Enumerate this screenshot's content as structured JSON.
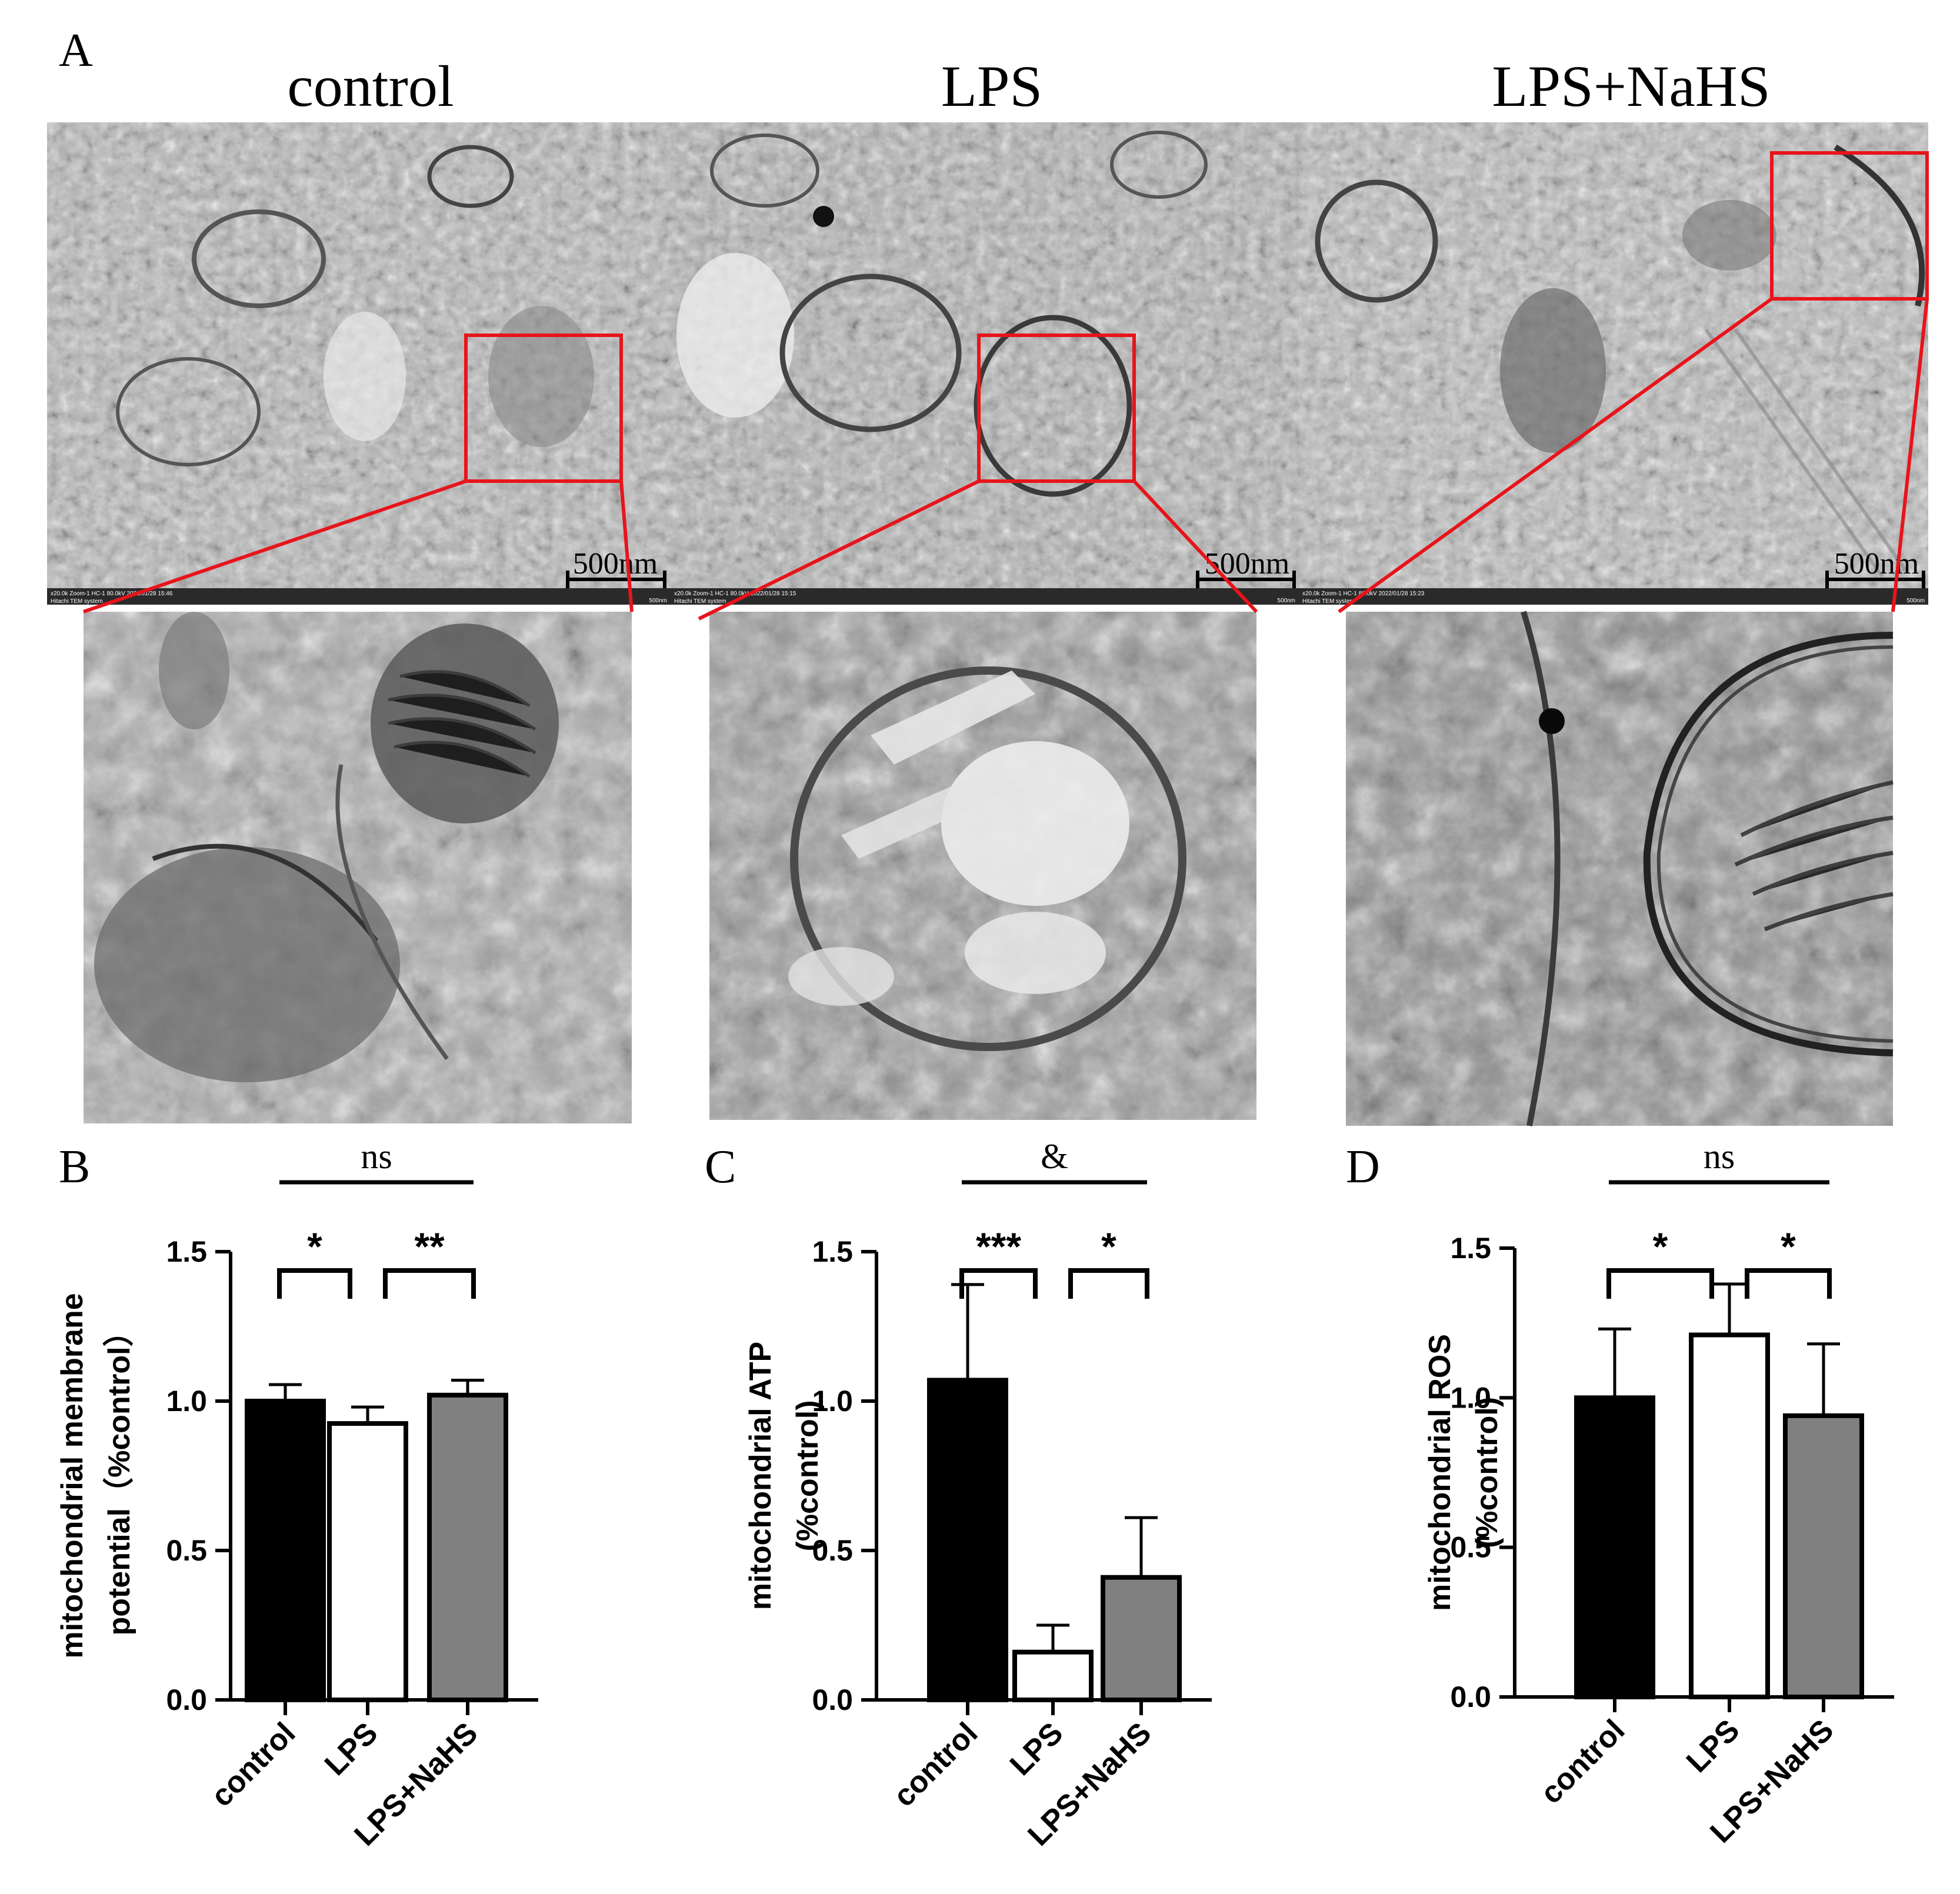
{
  "panel_a": {
    "letter": "A",
    "titles": [
      "control",
      "LPS",
      "LPS+NaHS"
    ],
    "scale_bar_label": "500nm",
    "microscope_meta": [
      {
        "line1": "x20.0k Zoom-1 HC-1 80.0kV 2022/01/28 15:46",
        "line2": "Hitachi TEM system",
        "right": "500nm"
      },
      {
        "line1": "x20.0k Zoom-1 HC-1 80.0kV 2022/01/28 15:15",
        "line2": "Hitachi TEM system",
        "right": "500nm"
      },
      {
        "line1": "x20.0k Zoom-1 HC-1 80.0kV 2022/01/28 15:23",
        "line2": "Hitachi TEM system",
        "right": "500nm"
      }
    ]
  },
  "chart_data": [
    {
      "panel": "B",
      "type": "bar",
      "ylabel": [
        "mitochondrial membrane",
        "potential（%control）"
      ],
      "categories": [
        "control",
        "LPS",
        "LPS+NaHS"
      ],
      "values": [
        1.0,
        0.925,
        1.02
      ],
      "errors": [
        0.055,
        0.055,
        0.05
      ],
      "bar_fills": [
        "#000000",
        "#ffffff",
        "#808080"
      ],
      "ylim": [
        0,
        1.5
      ],
      "yticks": [
        "0.0",
        "0.5",
        "1.0",
        "1.5"
      ],
      "significance": [
        {
          "from": 0,
          "to": 1,
          "label": "*"
        },
        {
          "from": 1,
          "to": 2,
          "label": "**"
        },
        {
          "from": 0,
          "to": 2,
          "label": "ns",
          "line": true
        }
      ]
    },
    {
      "panel": "C",
      "type": "bar",
      "ylabel": [
        "mitochondrial ATP",
        "(%control)"
      ],
      "categories": [
        "control",
        "LPS",
        "LPS+NaHS"
      ],
      "values": [
        1.07,
        0.16,
        0.41
      ],
      "errors": [
        0.32,
        0.09,
        0.2
      ],
      "bar_fills": [
        "#000000",
        "#ffffff",
        "#808080"
      ],
      "ylim": [
        0,
        1.5
      ],
      "yticks": [
        "0.0",
        "0.5",
        "1.0",
        "1.5"
      ],
      "significance": [
        {
          "from": 0,
          "to": 1,
          "label": "***"
        },
        {
          "from": 1,
          "to": 2,
          "label": "*"
        },
        {
          "from": 0,
          "to": 2,
          "label": "&",
          "line": true
        }
      ]
    },
    {
      "panel": "D",
      "type": "bar",
      "ylabel": [
        "mitochondrial ROS",
        "(%control)"
      ],
      "categories": [
        "control",
        "LPS",
        "LPS+NaHS"
      ],
      "values": [
        1.0,
        1.21,
        0.94
      ],
      "errors": [
        0.23,
        0.17,
        0.24
      ],
      "bar_fills": [
        "#000000",
        "#ffffff",
        "#808080"
      ],
      "ylim": [
        0,
        1.5
      ],
      "yticks": [
        "0.0",
        "0.5",
        "1.0",
        "1.5"
      ],
      "significance": [
        {
          "from": 0,
          "to": 1,
          "label": "*"
        },
        {
          "from": 1,
          "to": 2,
          "label": "*"
        },
        {
          "from": 0,
          "to": 2,
          "label": "ns",
          "line": true
        }
      ]
    }
  ]
}
